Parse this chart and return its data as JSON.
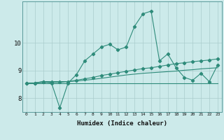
{
  "xlabel": "Humidex (Indice chaleur)",
  "bg_color": "#cceaea",
  "grid_color": "#aacccc",
  "line_color": "#2e8b7a",
  "x_values": [
    0,
    1,
    2,
    3,
    4,
    5,
    6,
    7,
    8,
    9,
    10,
    11,
    12,
    13,
    14,
    15,
    16,
    17,
    18,
    19,
    20,
    21,
    22,
    23
  ],
  "series1": [
    8.55,
    8.55,
    8.6,
    8.55,
    7.65,
    8.55,
    8.85,
    9.35,
    9.6,
    9.85,
    9.95,
    9.75,
    9.85,
    10.6,
    11.05,
    11.15,
    9.35,
    9.6,
    9.1,
    8.75,
    8.65,
    8.9,
    8.6,
    9.2
  ],
  "series2": [
    8.55,
    8.55,
    8.6,
    8.6,
    8.6,
    8.6,
    8.65,
    8.7,
    8.75,
    8.82,
    8.87,
    8.92,
    8.97,
    9.02,
    9.07,
    9.1,
    9.15,
    9.2,
    9.25,
    9.28,
    9.32,
    9.35,
    9.38,
    9.42
  ],
  "series3": [
    8.55,
    8.55,
    8.55,
    8.55,
    8.55,
    8.55,
    8.55,
    8.55,
    8.55,
    8.55,
    8.55,
    8.55,
    8.55,
    8.55,
    8.55,
    8.55,
    8.55,
    8.55,
    8.55,
    8.55,
    8.55,
    8.55,
    8.55,
    8.55
  ],
  "series4": [
    8.55,
    8.55,
    8.57,
    8.57,
    8.57,
    8.6,
    8.62,
    8.65,
    8.68,
    8.72,
    8.76,
    8.8,
    8.84,
    8.87,
    8.9,
    8.92,
    8.94,
    8.96,
    8.98,
    9.01,
    9.03,
    9.06,
    9.08,
    9.1
  ],
  "ylim": [
    7.5,
    11.5
  ],
  "yticks": [
    8,
    9,
    10
  ],
  "xlim": [
    -0.5,
    23.5
  ]
}
